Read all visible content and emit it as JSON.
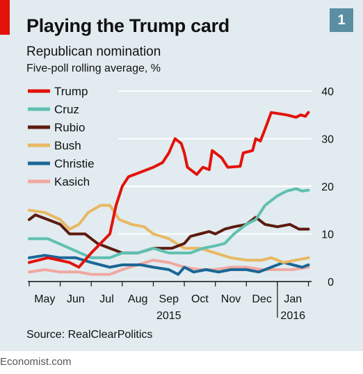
{
  "header": {
    "title": "Playing the Trump card",
    "subtitle": "Republican nomination",
    "unit_note": "Five-poll rolling average, %",
    "badge": "1"
  },
  "source": "Source: RealClearPolitics",
  "footer": "Economist.com",
  "chart_data": {
    "type": "line",
    "ylim": [
      0,
      40
    ],
    "yticks": [
      0,
      10,
      20,
      30,
      40
    ],
    "xlim": [
      0,
      9.1
    ],
    "month_ticks": [
      {
        "label": "May",
        "x": 0.5
      },
      {
        "label": "Jun",
        "x": 1.5
      },
      {
        "label": "Jul",
        "x": 2.5
      },
      {
        "label": "Aug",
        "x": 3.5
      },
      {
        "label": "Sep",
        "x": 4.5
      },
      {
        "label": "Oct",
        "x": 5.5
      },
      {
        "label": "Nov",
        "x": 6.5
      },
      {
        "label": "Dec",
        "x": 7.5
      },
      {
        "label": "Jan",
        "x": 8.5
      }
    ],
    "year_labels": [
      {
        "label": "2015",
        "x": 4.5
      },
      {
        "label": "2016",
        "x": 8.5
      }
    ],
    "grid": true,
    "legend_position": "top-left",
    "series": [
      {
        "name": "Trump",
        "color": "#e3120b",
        "width": 4,
        "points": [
          [
            0,
            4
          ],
          [
            0.6,
            5
          ],
          [
            1.3,
            4
          ],
          [
            1.6,
            3
          ],
          [
            2.0,
            6
          ],
          [
            2.3,
            8
          ],
          [
            2.6,
            10
          ],
          [
            2.8,
            16
          ],
          [
            3.0,
            20
          ],
          [
            3.2,
            22
          ],
          [
            3.6,
            23
          ],
          [
            4.0,
            24
          ],
          [
            4.3,
            25
          ],
          [
            4.5,
            27
          ],
          [
            4.7,
            30
          ],
          [
            4.9,
            29
          ],
          [
            5.0,
            27
          ],
          [
            5.1,
            24
          ],
          [
            5.4,
            22.5
          ],
          [
            5.6,
            24
          ],
          [
            5.8,
            23.5
          ],
          [
            5.9,
            27.5
          ],
          [
            6.2,
            26
          ],
          [
            6.4,
            24
          ],
          [
            6.8,
            24.2
          ],
          [
            6.9,
            27
          ],
          [
            7.2,
            27.5
          ],
          [
            7.3,
            30
          ],
          [
            7.45,
            29.5
          ],
          [
            7.6,
            32
          ],
          [
            7.8,
            35.5
          ],
          [
            8.0,
            35.3
          ],
          [
            8.3,
            35
          ],
          [
            8.6,
            34.5
          ],
          [
            8.75,
            35
          ],
          [
            8.9,
            34.7
          ],
          [
            9.0,
            35.5
          ]
        ]
      },
      {
        "name": "Cruz",
        "color": "#5fc0b0",
        "width": 4,
        "points": [
          [
            0,
            9
          ],
          [
            0.6,
            9
          ],
          [
            1.3,
            7
          ],
          [
            2.0,
            5
          ],
          [
            2.6,
            5
          ],
          [
            3.0,
            6
          ],
          [
            3.5,
            6
          ],
          [
            4.0,
            7
          ],
          [
            4.5,
            6
          ],
          [
            5.2,
            6
          ],
          [
            5.6,
            7
          ],
          [
            6.0,
            7.5
          ],
          [
            6.3,
            8
          ],
          [
            6.6,
            10
          ],
          [
            7.0,
            12
          ],
          [
            7.3,
            13
          ],
          [
            7.6,
            16
          ],
          [
            8.0,
            18
          ],
          [
            8.3,
            19
          ],
          [
            8.6,
            19.5
          ],
          [
            8.8,
            19
          ],
          [
            9.0,
            19.2
          ]
        ]
      },
      {
        "name": "Rubio",
        "color": "#5c1b0f",
        "width": 4,
        "points": [
          [
            0,
            13
          ],
          [
            0.2,
            14
          ],
          [
            0.6,
            13
          ],
          [
            1.0,
            12
          ],
          [
            1.3,
            10
          ],
          [
            1.8,
            10
          ],
          [
            2.2,
            8
          ],
          [
            2.6,
            7
          ],
          [
            3.0,
            6
          ],
          [
            3.5,
            6
          ],
          [
            4.0,
            7
          ],
          [
            4.6,
            7
          ],
          [
            5.0,
            8
          ],
          [
            5.2,
            9.5
          ],
          [
            5.5,
            10
          ],
          [
            5.8,
            10.5
          ],
          [
            6.0,
            10
          ],
          [
            6.3,
            11
          ],
          [
            6.6,
            11.5
          ],
          [
            7.0,
            12
          ],
          [
            7.3,
            13.5
          ],
          [
            7.6,
            12
          ],
          [
            8.0,
            11.5
          ],
          [
            8.4,
            12
          ],
          [
            8.7,
            11
          ],
          [
            9.0,
            11
          ]
        ]
      },
      {
        "name": "Bush",
        "color": "#e8b862",
        "width": 4,
        "points": [
          [
            0,
            15
          ],
          [
            0.5,
            14.5
          ],
          [
            1.0,
            13
          ],
          [
            1.3,
            11
          ],
          [
            1.6,
            12
          ],
          [
            1.9,
            14.5
          ],
          [
            2.3,
            16
          ],
          [
            2.6,
            16
          ],
          [
            2.9,
            13
          ],
          [
            3.3,
            12
          ],
          [
            3.7,
            11.5
          ],
          [
            4.0,
            10
          ],
          [
            4.5,
            9
          ],
          [
            5.0,
            7
          ],
          [
            5.5,
            7
          ],
          [
            6.0,
            6
          ],
          [
            6.5,
            5
          ],
          [
            7.0,
            4.5
          ],
          [
            7.5,
            4.5
          ],
          [
            7.8,
            5
          ],
          [
            8.2,
            4
          ],
          [
            8.6,
            4.5
          ],
          [
            9.0,
            5
          ]
        ]
      },
      {
        "name": "Christie",
        "color": "#1a6796",
        "width": 4,
        "points": [
          [
            0,
            5
          ],
          [
            0.5,
            5.5
          ],
          [
            1.0,
            5
          ],
          [
            1.5,
            5
          ],
          [
            2.0,
            4
          ],
          [
            2.6,
            3
          ],
          [
            3.0,
            3.5
          ],
          [
            3.6,
            3.5
          ],
          [
            4.0,
            3
          ],
          [
            4.5,
            2.5
          ],
          [
            4.8,
            1.5
          ],
          [
            5.0,
            3
          ],
          [
            5.3,
            2
          ],
          [
            5.7,
            2.5
          ],
          [
            6.1,
            2
          ],
          [
            6.5,
            2.5
          ],
          [
            7.0,
            2.5
          ],
          [
            7.4,
            2
          ],
          [
            7.8,
            3
          ],
          [
            8.2,
            4
          ],
          [
            8.5,
            3.5
          ],
          [
            8.8,
            3
          ],
          [
            9.0,
            3.5
          ]
        ]
      },
      {
        "name": "Kasich",
        "color": "#f0a8a0",
        "width": 4,
        "points": [
          [
            0,
            2
          ],
          [
            0.5,
            2.5
          ],
          [
            1.0,
            2
          ],
          [
            1.6,
            2
          ],
          [
            2.0,
            1.5
          ],
          [
            2.6,
            1.5
          ],
          [
            3.0,
            2.5
          ],
          [
            3.5,
            3.5
          ],
          [
            4.0,
            4.5
          ],
          [
            4.5,
            4
          ],
          [
            5.0,
            3
          ],
          [
            5.5,
            2.5
          ],
          [
            6.0,
            2.5
          ],
          [
            6.5,
            3
          ],
          [
            7.0,
            3
          ],
          [
            7.5,
            2.5
          ],
          [
            8.0,
            2.5
          ],
          [
            8.5,
            2.5
          ],
          [
            9.0,
            3
          ]
        ]
      }
    ]
  }
}
